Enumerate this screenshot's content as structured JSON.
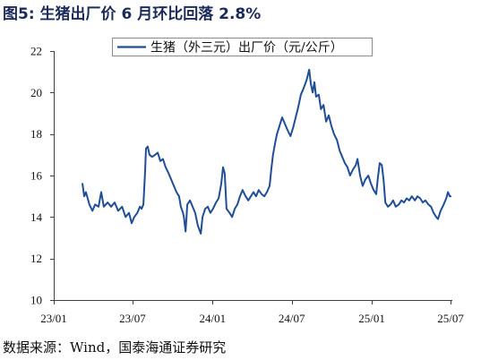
{
  "chart_data": {
    "type": "line",
    "title": "图5: 生猪出厂价 6 月环比回落 2.8%",
    "xlabel": "",
    "ylabel": "",
    "xlim": [
      "2023-01-01",
      "2025-07-05"
    ],
    "ylim": [
      10,
      22
    ],
    "yticks": [
      10,
      12,
      14,
      16,
      18,
      20,
      22
    ],
    "xticks": [
      {
        "label": "23/01",
        "value": "2023-01-01"
      },
      {
        "label": "23/07",
        "value": "2023-07-01"
      },
      {
        "label": "24/01",
        "value": "2024-01-01"
      },
      {
        "label": "24/07",
        "value": "2024-07-01"
      },
      {
        "label": "25/01",
        "value": "2025-01-01"
      },
      {
        "label": "25/07",
        "value": "2025-07-01"
      }
    ],
    "grid": false,
    "legend": "top-center",
    "series": [
      {
        "name": "生猪（外三元）出厂价（元/公斤）",
        "color": "#1f4e96",
        "points": [
          [
            "2023-03-08",
            15.6
          ],
          [
            "2023-03-12",
            15.0
          ],
          [
            "2023-03-16",
            15.2
          ],
          [
            "2023-03-20",
            14.9
          ],
          [
            "2023-03-24",
            14.6
          ],
          [
            "2023-03-31",
            14.3
          ],
          [
            "2023-04-06",
            14.6
          ],
          [
            "2023-04-14",
            14.5
          ],
          [
            "2023-04-20",
            15.2
          ],
          [
            "2023-04-26",
            14.5
          ],
          [
            "2023-05-05",
            14.7
          ],
          [
            "2023-05-13",
            14.5
          ],
          [
            "2023-05-21",
            14.7
          ],
          [
            "2023-05-29",
            14.3
          ],
          [
            "2023-06-07",
            14.5
          ],
          [
            "2023-06-15",
            14.0
          ],
          [
            "2023-06-23",
            14.2
          ],
          [
            "2023-06-29",
            13.7
          ],
          [
            "2023-07-05",
            14.0
          ],
          [
            "2023-07-12",
            14.2
          ],
          [
            "2023-07-18",
            14.5
          ],
          [
            "2023-07-22",
            14.4
          ],
          [
            "2023-07-26",
            14.6
          ],
          [
            "2023-07-30",
            16.2
          ],
          [
            "2023-08-01",
            17.3
          ],
          [
            "2023-08-05",
            17.4
          ],
          [
            "2023-08-09",
            17.0
          ],
          [
            "2023-08-15",
            16.9
          ],
          [
            "2023-08-22",
            17.0
          ],
          [
            "2023-08-28",
            17.1
          ],
          [
            "2023-09-03",
            16.7
          ],
          [
            "2023-09-09",
            16.8
          ],
          [
            "2023-09-15",
            16.4
          ],
          [
            "2023-09-22",
            16.1
          ],
          [
            "2023-09-28",
            15.8
          ],
          [
            "2023-10-04",
            15.5
          ],
          [
            "2023-10-10",
            15.2
          ],
          [
            "2023-10-16",
            15.0
          ],
          [
            "2023-10-20",
            14.5
          ],
          [
            "2023-10-25",
            14.2
          ],
          [
            "2023-10-27",
            14.0
          ],
          [
            "2023-10-31",
            13.3
          ],
          [
            "2023-11-04",
            14.6
          ],
          [
            "2023-11-10",
            14.8
          ],
          [
            "2023-11-16",
            14.5
          ],
          [
            "2023-11-22",
            14.2
          ],
          [
            "2023-11-28",
            13.6
          ],
          [
            "2023-12-05",
            13.2
          ],
          [
            "2023-12-09",
            14.0
          ],
          [
            "2023-12-15",
            14.4
          ],
          [
            "2023-12-21",
            14.5
          ],
          [
            "2023-12-27",
            14.2
          ],
          [
            "2024-01-02",
            14.4
          ],
          [
            "2024-01-09",
            14.7
          ],
          [
            "2024-01-15",
            14.9
          ],
          [
            "2024-01-21",
            15.6
          ],
          [
            "2024-01-25",
            16.4
          ],
          [
            "2024-01-29",
            16.1
          ],
          [
            "2024-02-02",
            14.4
          ],
          [
            "2024-02-09",
            14.2
          ],
          [
            "2024-02-15",
            14.0
          ],
          [
            "2024-02-21",
            14.4
          ],
          [
            "2024-02-27",
            14.6
          ],
          [
            "2024-03-04",
            15.0
          ],
          [
            "2024-03-10",
            15.3
          ],
          [
            "2024-03-17",
            15.0
          ],
          [
            "2024-03-23",
            14.8
          ],
          [
            "2024-03-29",
            15.0
          ],
          [
            "2024-04-04",
            15.2
          ],
          [
            "2024-04-10",
            15.0
          ],
          [
            "2024-04-16",
            15.3
          ],
          [
            "2024-04-23",
            15.1
          ],
          [
            "2024-04-29",
            15.0
          ],
          [
            "2024-05-05",
            15.2
          ],
          [
            "2024-05-11",
            15.5
          ],
          [
            "2024-05-15",
            16.3
          ],
          [
            "2024-05-19",
            17.0
          ],
          [
            "2024-05-24",
            17.6
          ],
          [
            "2024-05-28",
            18.0
          ],
          [
            "2024-06-03",
            18.4
          ],
          [
            "2024-06-09",
            18.8
          ],
          [
            "2024-06-15",
            18.5
          ],
          [
            "2024-06-21",
            18.2
          ],
          [
            "2024-06-28",
            17.9
          ],
          [
            "2024-07-04",
            18.3
          ],
          [
            "2024-07-10",
            18.8
          ],
          [
            "2024-07-16",
            19.3
          ],
          [
            "2024-07-22",
            19.9
          ],
          [
            "2024-07-28",
            20.2
          ],
          [
            "2024-08-04",
            20.6
          ],
          [
            "2024-08-10",
            21.1
          ],
          [
            "2024-08-14",
            20.4
          ],
          [
            "2024-08-18",
            20.0
          ],
          [
            "2024-08-22",
            20.5
          ],
          [
            "2024-08-26",
            19.8
          ],
          [
            "2024-09-01",
            19.9
          ],
          [
            "2024-09-06",
            19.2
          ],
          [
            "2024-09-12",
            19.4
          ],
          [
            "2024-09-18",
            18.6
          ],
          [
            "2024-09-24",
            18.9
          ],
          [
            "2024-09-30",
            18.4
          ],
          [
            "2024-10-06",
            18.0
          ],
          [
            "2024-10-13",
            17.7
          ],
          [
            "2024-10-19",
            17.2
          ],
          [
            "2024-10-25",
            16.9
          ],
          [
            "2024-10-31",
            16.6
          ],
          [
            "2024-11-06",
            16.4
          ],
          [
            "2024-11-12",
            16.0
          ],
          [
            "2024-11-19",
            16.3
          ],
          [
            "2024-11-25",
            16.5
          ],
          [
            "2024-11-29",
            16.8
          ],
          [
            "2024-12-05",
            16.0
          ],
          [
            "2024-12-11",
            15.5
          ],
          [
            "2024-12-17",
            15.8
          ],
          [
            "2024-12-24",
            16.0
          ],
          [
            "2024-12-30",
            15.6
          ],
          [
            "2025-01-05",
            15.3
          ],
          [
            "2025-01-11",
            15.1
          ],
          [
            "2025-01-15",
            15.9
          ],
          [
            "2025-01-19",
            16.6
          ],
          [
            "2025-01-24",
            16.5
          ],
          [
            "2025-01-28",
            15.8
          ],
          [
            "2025-02-01",
            14.7
          ],
          [
            "2025-02-07",
            14.5
          ],
          [
            "2025-02-13",
            14.6
          ],
          [
            "2025-02-19",
            14.8
          ],
          [
            "2025-02-25",
            14.5
          ],
          [
            "2025-03-04",
            14.6
          ],
          [
            "2025-03-10",
            14.8
          ],
          [
            "2025-03-16",
            14.7
          ],
          [
            "2025-03-22",
            14.9
          ],
          [
            "2025-03-28",
            14.8
          ],
          [
            "2025-04-03",
            15.0
          ],
          [
            "2025-04-10",
            14.8
          ],
          [
            "2025-04-16",
            15.0
          ],
          [
            "2025-04-22",
            14.9
          ],
          [
            "2025-04-28",
            14.7
          ],
          [
            "2025-05-04",
            14.8
          ],
          [
            "2025-05-11",
            14.6
          ],
          [
            "2025-05-17",
            14.5
          ],
          [
            "2025-05-23",
            14.2
          ],
          [
            "2025-05-29",
            14.0
          ],
          [
            "2025-06-02",
            13.9
          ],
          [
            "2025-06-08",
            14.3
          ],
          [
            "2025-06-15",
            14.6
          ],
          [
            "2025-06-21",
            14.9
          ],
          [
            "2025-06-25",
            15.2
          ],
          [
            "2025-06-29",
            15.0
          ],
          [
            "2025-07-01",
            15.0
          ]
        ]
      }
    ]
  },
  "source": "数据来源：Wind，国泰海通证券研究",
  "colors": {
    "title": "#1c2b5a",
    "axis": "#404040",
    "legend_border": "#8c8c8c"
  }
}
